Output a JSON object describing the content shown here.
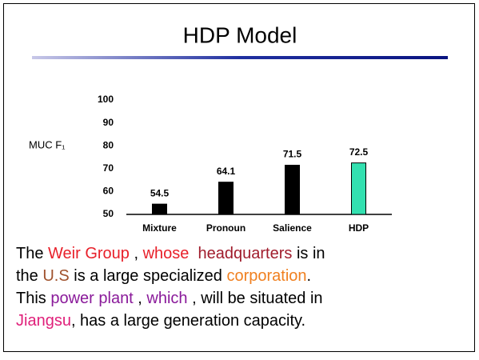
{
  "slide": {
    "title": "HDP Model",
    "lines": [
      [
        {
          "text": "The ",
          "color": "#000000"
        },
        {
          "text": "Weir Group",
          "color": "#e8202a"
        },
        {
          "text": " , ",
          "color": "#000000"
        },
        {
          "text": "whose ",
          "color": "#e8202a"
        },
        {
          "text": " headquarters",
          "color": "#a01c2c"
        },
        {
          "text": " is in",
          "color": "#000000"
        }
      ],
      [
        {
          "text": "the ",
          "color": "#000000"
        },
        {
          "text": "U.S",
          "color": "#a0522d"
        },
        {
          "text": " is a large specialized ",
          "color": "#000000"
        },
        {
          "text": "corporation",
          "color": "#f08020"
        },
        {
          "text": ".",
          "color": "#000000"
        }
      ],
      [
        {
          "text": "This ",
          "color": "#000000"
        },
        {
          "text": "power plant",
          "color": "#8a1a9a"
        },
        {
          "text": " , ",
          "color": "#000000"
        },
        {
          "text": "which",
          "color": "#8a1a9a"
        },
        {
          "text": " , will be situated in",
          "color": "#000000"
        }
      ],
      [
        {
          "text": "Jiangsu",
          "color": "#e0207a"
        },
        {
          "text": ", has a large generation capacity.",
          "color": "#000000"
        }
      ]
    ]
  },
  "chart_data": {
    "type": "bar",
    "y_label": "MUC F₁",
    "categories": [
      "Mixture",
      "Pronoun",
      "Salience",
      "HDP"
    ],
    "values": [
      54.5,
      64.1,
      71.5,
      72.5
    ],
    "colors": [
      "#000000",
      "#000000",
      "#000000",
      "#33e0b0"
    ],
    "ylim": [
      50,
      100
    ],
    "yticks": [
      50,
      60,
      70,
      80,
      90,
      100
    ],
    "grid": false
  }
}
